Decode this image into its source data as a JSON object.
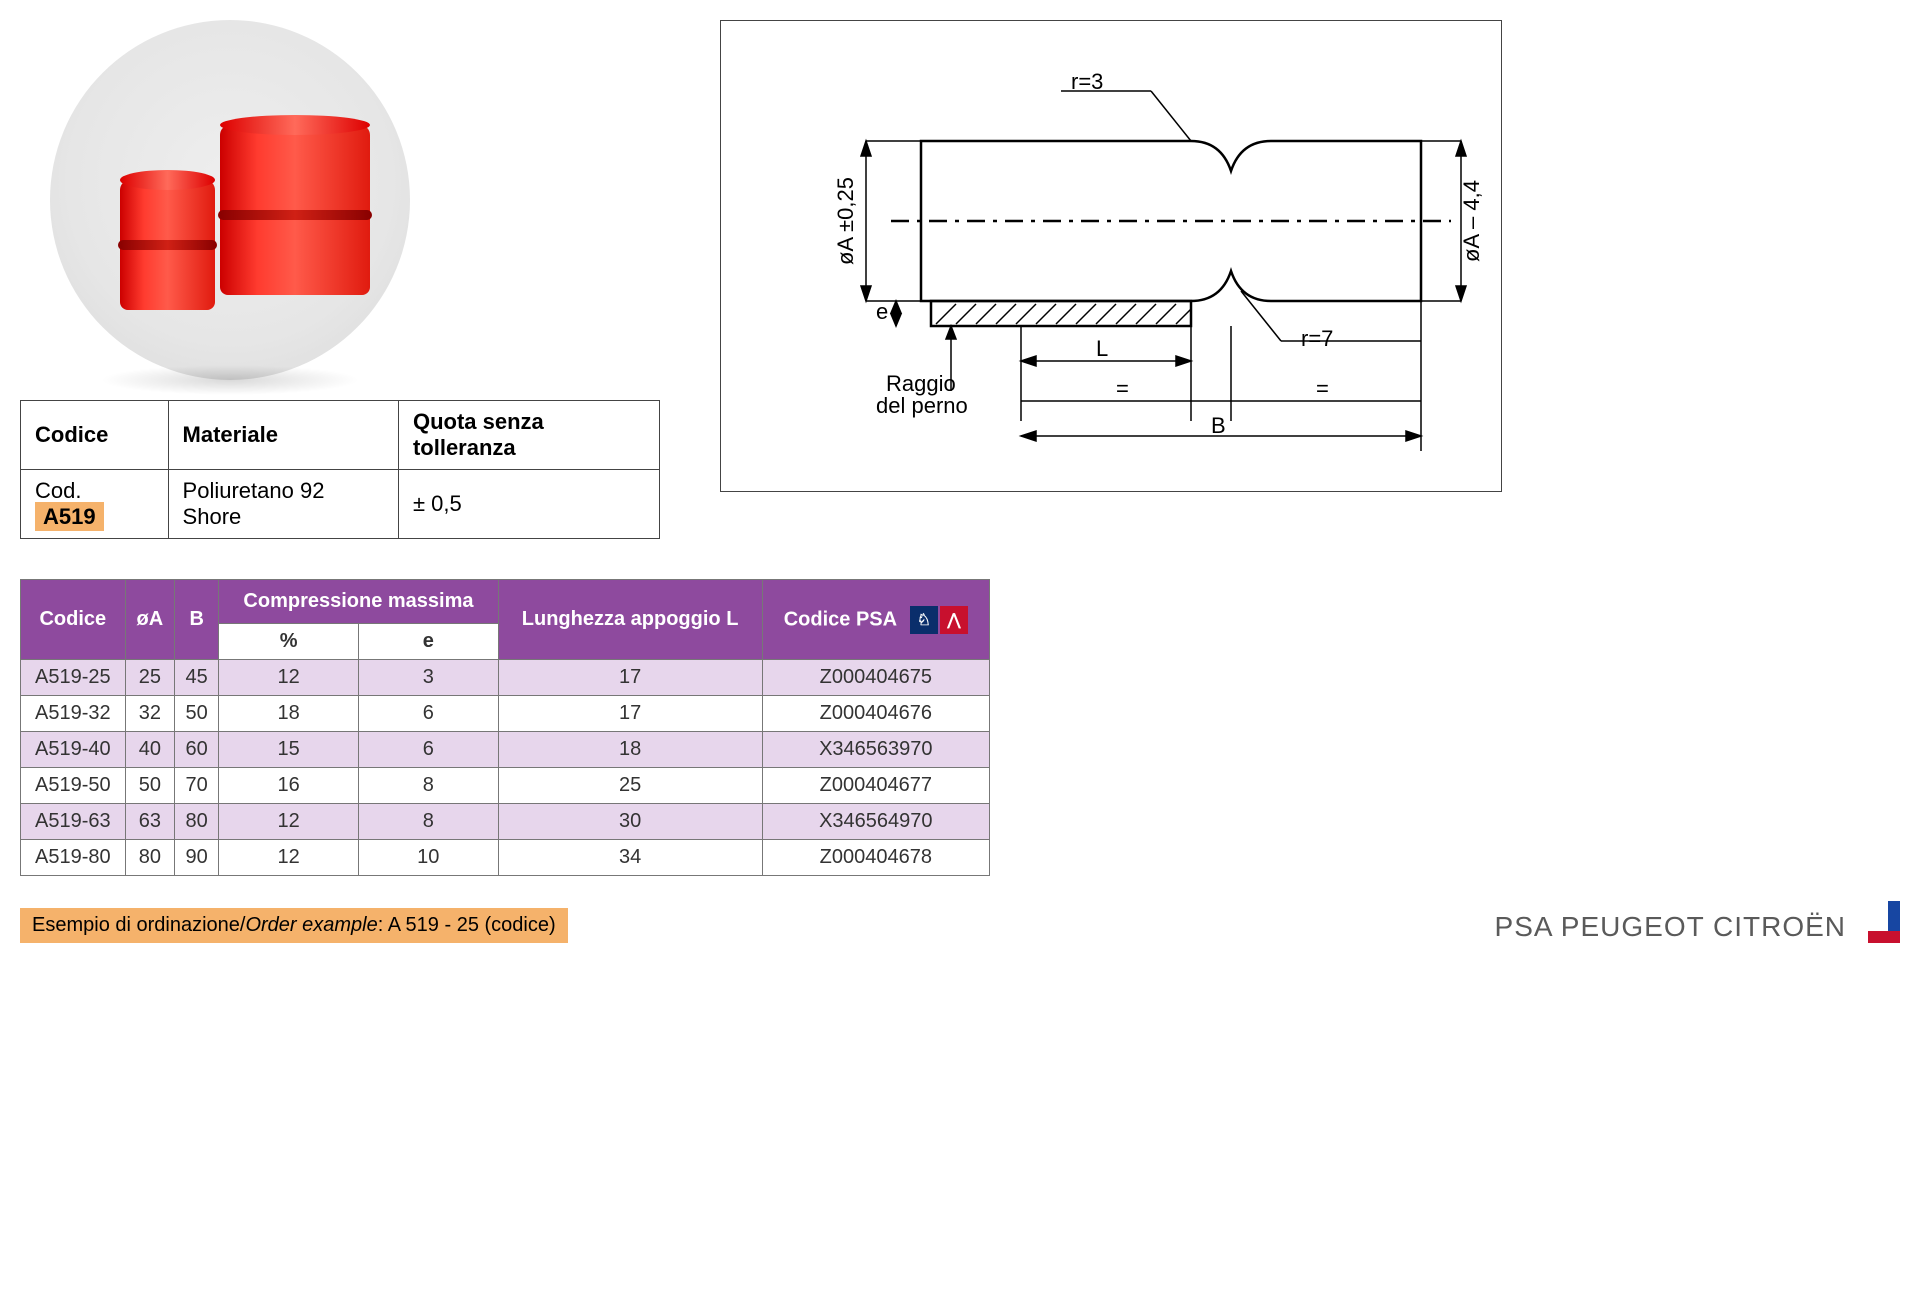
{
  "info_table": {
    "headers": [
      "Codice",
      "Materiale",
      "Quota senza tolleranza"
    ],
    "code_prefix": "Cod.",
    "code_value": "A519",
    "material": "Poliuretano 92 Shore",
    "tolerance": "± 0,5"
  },
  "diagram": {
    "r_top": "r=3",
    "r_bottom": "r=7",
    "phi_left": "øA  ±0,25",
    "phi_right": "øA – 4,4",
    "e": "e",
    "L": "L",
    "B": "B",
    "eq": "=",
    "raggio": "Raggio\ndel perno"
  },
  "data_table": {
    "headers": [
      "Codice",
      "øA",
      "B",
      "Compressione massima",
      "Lunghezza appoggio L",
      "Codice PSA"
    ],
    "sub_headers": [
      "",
      "",
      "",
      "%",
      "e",
      "",
      ""
    ],
    "rows": [
      [
        "A519-25",
        "25",
        "45",
        "12",
        "3",
        "17",
        "Z000404675"
      ],
      [
        "A519-32",
        "32",
        "50",
        "18",
        "6",
        "17",
        "Z000404676"
      ],
      [
        "A519-40",
        "40",
        "60",
        "15",
        "6",
        "18",
        "X346563970"
      ],
      [
        "A519-50",
        "50",
        "70",
        "16",
        "8",
        "25",
        "Z000404677"
      ],
      [
        "A519-63",
        "63",
        "80",
        "12",
        "8",
        "30",
        "X346564970"
      ],
      [
        "A519-80",
        "80",
        "90",
        "12",
        "10",
        "34",
        "Z000404678"
      ]
    ],
    "header_bg": "#8e4a9e",
    "row_alt_bg": "#e7d6ec"
  },
  "order_example": {
    "label_it": "Esempio di ordinazione",
    "label_en": "Order example",
    "value": "A 519 - 25 (codice)"
  },
  "psa_brand": "PSA PEUGEOT CITROËN"
}
